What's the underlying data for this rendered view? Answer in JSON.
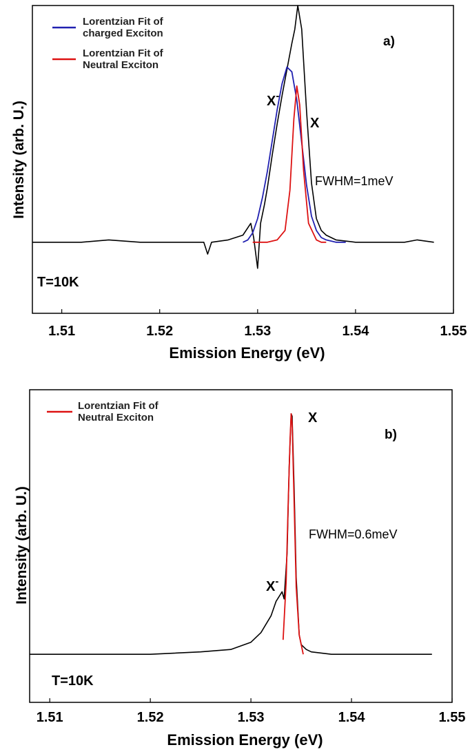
{
  "chart_data": [
    {
      "type": "line",
      "panel_label": "a)",
      "xlabel": "Emission Energy (eV)",
      "ylabel": "Intensity  (arb. U.)",
      "xlim": [
        1.507,
        1.55
      ],
      "ylim": [
        -0.3,
        1.0
      ],
      "xticks": [
        "1.51",
        "1.52",
        "1.53",
        "1.54",
        "1.55"
      ],
      "xtick_values": [
        1.51,
        1.52,
        1.53,
        1.54,
        1.55
      ],
      "legend": {
        "placement": "top-left",
        "entries": [
          {
            "lines": [
              "Lorentzian Fit of",
              "charged Exciton"
            ],
            "color": "#2020b0"
          },
          {
            "lines": [
              "Lorentzian Fit of",
              "Neutral Exciton"
            ],
            "color": "#dd1111"
          }
        ]
      },
      "annotations": {
        "xminus": {
          "base": "X",
          "sup": "-"
        },
        "x": "X",
        "fwhm": "FWHM=1meV",
        "temp": "T=10K"
      },
      "series": [
        {
          "color": "#000000",
          "x": [
            1.507,
            1.512,
            1.5148,
            1.518,
            1.522,
            1.5245,
            1.5249,
            1.5253,
            1.527,
            1.5285,
            1.5293,
            1.5296,
            1.53,
            1.5303,
            1.5307,
            1.531,
            1.5315,
            1.532,
            1.5325,
            1.533,
            1.5335,
            1.5338,
            1.5341,
            1.5345,
            1.535,
            1.5355,
            1.536,
            1.5365,
            1.537,
            1.538,
            1.54,
            1.545,
            1.5463,
            1.548
          ],
          "y": [
            0.0,
            0.0,
            0.01,
            0.0,
            0.0,
            0.0,
            -0.05,
            0.0,
            0.01,
            0.03,
            0.08,
            0.02,
            -0.11,
            0.08,
            0.16,
            0.23,
            0.37,
            0.5,
            0.62,
            0.73,
            0.84,
            0.9,
            1.0,
            0.9,
            0.55,
            0.25,
            0.1,
            0.05,
            0.03,
            0.01,
            0.0,
            0.0,
            0.01,
            0.0
          ]
        },
        {
          "color": "#2020b0",
          "x": [
            1.5285,
            1.529,
            1.5295,
            1.53,
            1.5305,
            1.531,
            1.5315,
            1.532,
            1.5325,
            1.533,
            1.5335,
            1.534,
            1.5345,
            1.535,
            1.5355,
            1.536,
            1.5365,
            1.537,
            1.538,
            1.539
          ],
          "y": [
            0.0,
            0.01,
            0.04,
            0.1,
            0.19,
            0.3,
            0.43,
            0.56,
            0.67,
            0.74,
            0.72,
            0.6,
            0.42,
            0.24,
            0.11,
            0.05,
            0.02,
            0.01,
            0.0,
            0.0
          ]
        },
        {
          "color": "#dd1111",
          "x": [
            1.5295,
            1.531,
            1.532,
            1.5328,
            1.5333,
            1.5337,
            1.534,
            1.5343,
            1.5347,
            1.5352,
            1.536,
            1.5365,
            1.537
          ],
          "y": [
            0.0,
            0.0,
            0.01,
            0.05,
            0.22,
            0.52,
            0.66,
            0.58,
            0.3,
            0.08,
            0.01,
            0.0,
            0.0
          ]
        }
      ]
    },
    {
      "type": "line",
      "panel_label": "b)",
      "xlabel": "Emission Energy (eV)",
      "ylabel": "Intensity  (arb. U.)",
      "xlim": [
        1.508,
        1.55
      ],
      "ylim": [
        -0.2,
        1.1
      ],
      "xticks": [
        "1.51",
        "1.52",
        "1.53",
        "1.54",
        "1.55"
      ],
      "xtick_values": [
        1.51,
        1.52,
        1.53,
        1.54,
        1.55
      ],
      "legend": {
        "placement": "top-left",
        "entries": [
          {
            "lines": [
              "Lorentzian Fit of",
              "Neutral Exciton"
            ],
            "color": "#dd1111"
          }
        ]
      },
      "annotations": {
        "xminus": {
          "base": "X",
          "sup": "-"
        },
        "x": "X",
        "fwhm": "FWHM=0.6meV",
        "temp": "T=10K"
      },
      "series": [
        {
          "color": "#000000",
          "x": [
            1.508,
            1.515,
            1.52,
            1.525,
            1.528,
            1.53,
            1.531,
            1.532,
            1.5325,
            1.5331,
            1.5333,
            1.5336,
            1.5338,
            1.534,
            1.5341,
            1.5343,
            1.5345,
            1.5348,
            1.535,
            1.5355,
            1.536,
            1.538,
            1.542,
            1.548
          ],
          "y": [
            0.0,
            0.0,
            0.0,
            0.01,
            0.02,
            0.05,
            0.09,
            0.16,
            0.22,
            0.26,
            0.23,
            0.42,
            0.78,
            1.0,
            0.99,
            0.68,
            0.32,
            0.08,
            0.04,
            0.02,
            0.01,
            0.0,
            0.0,
            0.0
          ]
        },
        {
          "color": "#dd1111",
          "x": [
            1.5332,
            1.5335,
            1.5337,
            1.5339,
            1.534,
            1.5341,
            1.5343,
            1.5345,
            1.5348,
            1.5352
          ],
          "y": [
            0.06,
            0.3,
            0.62,
            0.9,
            1.0,
            0.96,
            0.62,
            0.28,
            0.08,
            0.0
          ]
        }
      ]
    }
  ]
}
